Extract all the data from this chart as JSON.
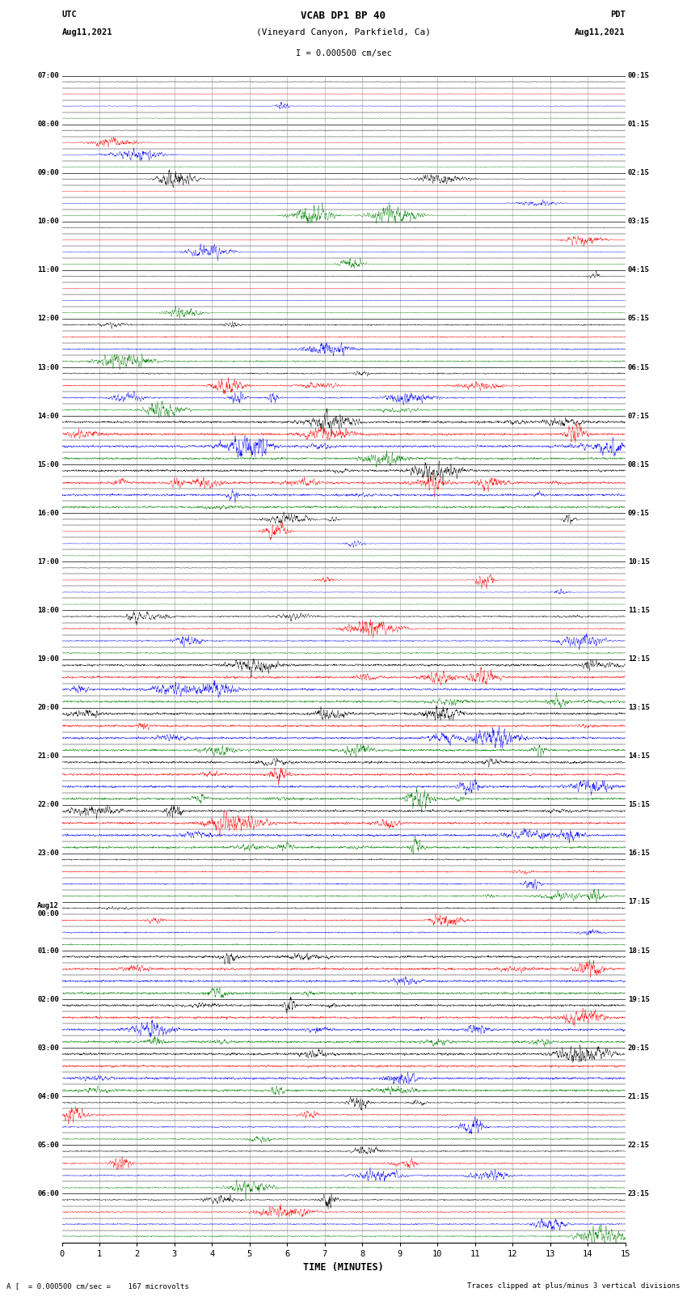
{
  "title_line1": "VCAB DP1 BP 40",
  "title_line2": "(Vineyard Canyon, Parkfield, Ca)",
  "scale_label": "I = 0.000500 cm/sec",
  "left_header_1": "UTC",
  "left_header_2": "Aug11,2021",
  "right_header_1": "PDT",
  "right_header_2": "Aug11,2021",
  "bottom_label": "TIME (MINUTES)",
  "bottom_note_left": "A [  = 0.000500 cm/sec =    167 microvolts",
  "bottom_note_right": "Traces clipped at plus/minus 3 vertical divisions",
  "num_hour_blocks": 24,
  "traces_per_block": 4,
  "colors": [
    "black",
    "red",
    "blue",
    "green"
  ],
  "bg_color": "white",
  "fig_width": 8.5,
  "fig_height": 16.13,
  "left_utc_labels": [
    "07:00",
    "08:00",
    "09:00",
    "10:00",
    "11:00",
    "12:00",
    "13:00",
    "14:00",
    "15:00",
    "16:00",
    "17:00",
    "18:00",
    "19:00",
    "20:00",
    "21:00",
    "22:00",
    "23:00",
    "Aug12\n00:00",
    "01:00",
    "02:00",
    "03:00",
    "04:00",
    "05:00",
    "06:00"
  ],
  "right_pdt_labels": [
    "00:15",
    "01:15",
    "02:15",
    "03:15",
    "04:15",
    "05:15",
    "06:15",
    "07:15",
    "08:15",
    "09:15",
    "10:15",
    "11:15",
    "12:15",
    "13:15",
    "14:15",
    "15:15",
    "16:15",
    "17:15",
    "18:15",
    "19:15",
    "20:15",
    "21:15",
    "22:15",
    "23:15"
  ]
}
